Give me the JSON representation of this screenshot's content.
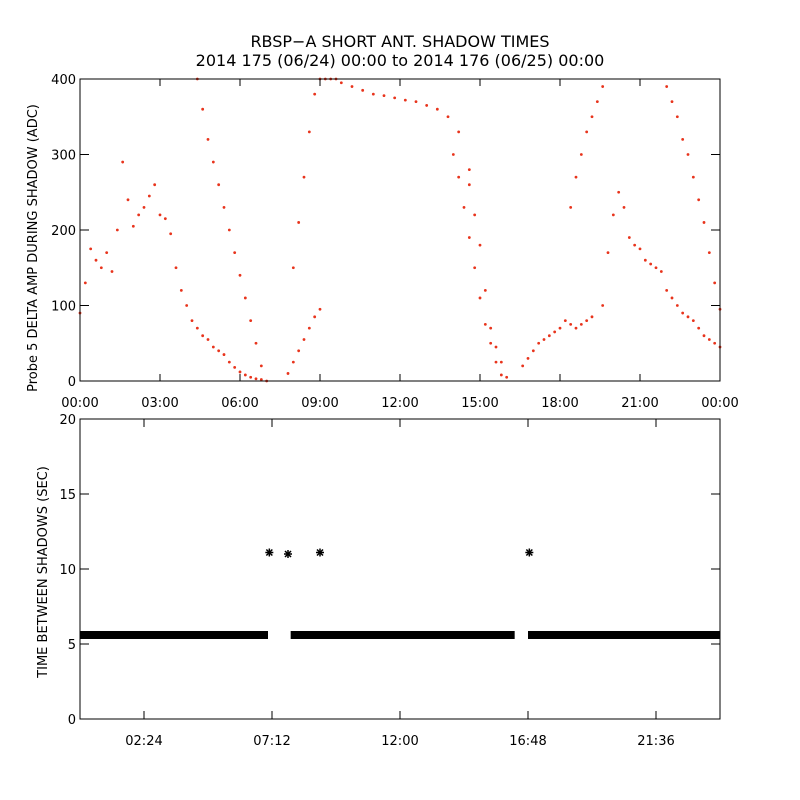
{
  "title_line1": "RBSP−A SHORT ANT. SHADOW TIMES",
  "title_line2": "2014 175 (06/24) 00:00 to 2014 176 (06/25) 00:00",
  "colors": {
    "top_points": "#e8341c",
    "bottom_points": "#000000",
    "axes": "#000000"
  },
  "chart_data": [
    {
      "type": "scatter",
      "title": "RBSP−A SHORT ANT. SHADOW TIMES",
      "ylabel": "Probe 5 DELTA AMP DURING SHADOW (ADC)",
      "xlabel": "",
      "xlim": [
        0,
        24
      ],
      "ylim": [
        0,
        400
      ],
      "x_unit": "hours",
      "x_tick_labels": [
        "00:00",
        "03:00",
        "06:00",
        "09:00",
        "12:00",
        "15:00",
        "18:00",
        "21:00",
        "00:00"
      ],
      "x_tick_values": [
        0,
        3,
        6,
        9,
        12,
        15,
        18,
        21,
        24
      ],
      "y_ticks": [
        0,
        100,
        200,
        300,
        400
      ],
      "color": "#e8341c",
      "series": [
        {
          "name": "",
          "x": [
            0.0,
            0.2,
            0.4,
            0.6,
            0.8,
            1.0,
            1.2,
            1.4,
            1.6,
            1.8,
            2.0,
            2.2,
            2.4,
            2.6,
            2.8,
            3.0,
            3.2,
            3.4,
            3.6,
            3.8,
            4.0,
            4.2,
            4.4,
            4.6,
            4.8,
            5.0,
            5.2,
            5.4,
            5.6,
            5.8,
            6.0,
            6.2,
            6.4,
            6.6,
            6.8,
            7.0,
            4.4,
            4.6,
            4.8,
            5.0,
            5.2,
            5.4,
            5.6,
            5.8,
            6.0,
            6.2,
            6.4,
            6.6,
            6.8,
            7.8,
            8.0,
            8.2,
            8.4,
            8.6,
            8.8,
            9.0,
            8.0,
            8.2,
            8.4,
            8.6,
            8.8,
            9.0,
            9.2,
            9.4,
            9.6,
            9.8,
            10.2,
            10.6,
            11.0,
            11.4,
            11.8,
            12.2,
            12.6,
            13.0,
            13.4,
            13.8,
            14.2,
            14.6,
            14.6,
            14.8,
            15.0,
            15.2,
            15.4,
            15.6,
            15.8,
            16.0,
            14.0,
            14.2,
            14.4,
            14.6,
            14.8,
            15.0,
            15.2,
            15.4,
            15.6,
            15.8,
            16.6,
            16.8,
            17.0,
            17.2,
            17.4,
            17.6,
            17.8,
            18.0,
            18.2,
            18.4,
            18.6,
            18.8,
            19.0,
            19.2,
            18.4,
            18.6,
            18.8,
            19.0,
            19.2,
            19.4,
            19.6,
            19.6,
            19.8,
            20.0,
            20.2,
            20.4,
            20.6,
            20.8,
            21.0,
            21.2,
            21.4,
            21.6,
            21.8,
            22.0,
            22.2,
            22.4,
            22.6,
            22.8,
            23.0,
            23.2,
            23.4,
            23.6,
            23.8,
            24.0,
            22.0,
            22.2,
            22.4,
            22.6,
            22.8,
            23.0,
            23.2,
            23.4,
            23.6,
            23.8,
            24.0
          ],
          "y": [
            90,
            130,
            175,
            160,
            150,
            170,
            145,
            200,
            290,
            240,
            205,
            220,
            230,
            245,
            260,
            220,
            215,
            195,
            150,
            120,
            100,
            80,
            70,
            60,
            55,
            45,
            40,
            35,
            25,
            18,
            12,
            8,
            5,
            3,
            2,
            0,
            400,
            360,
            320,
            290,
            260,
            230,
            200,
            170,
            140,
            110,
            80,
            50,
            20,
            10,
            25,
            40,
            55,
            70,
            85,
            95,
            150,
            210,
            270,
            330,
            380,
            400,
            400,
            400,
            400,
            395,
            390,
            385,
            380,
            378,
            375,
            372,
            370,
            365,
            360,
            350,
            330,
            280,
            260,
            220,
            180,
            120,
            70,
            45,
            25,
            5,
            300,
            270,
            230,
            190,
            150,
            110,
            75,
            50,
            25,
            8,
            20,
            30,
            40,
            50,
            55,
            60,
            65,
            70,
            80,
            75,
            70,
            75,
            80,
            85,
            230,
            270,
            300,
            330,
            350,
            370,
            390,
            100,
            170,
            220,
            250,
            230,
            190,
            180,
            175,
            160,
            155,
            150,
            145,
            120,
            110,
            100,
            90,
            85,
            80,
            70,
            60,
            55,
            50,
            45,
            390,
            370,
            350,
            320,
            300,
            270,
            240,
            210,
            170,
            130,
            95
          ]
        }
      ]
    },
    {
      "type": "scatter",
      "ylabel": "TIME BETWEEN SHADOWS (SEC)",
      "xlabel": "",
      "xlim": [
        0,
        24
      ],
      "ylim": [
        0,
        20
      ],
      "x_unit": "hours",
      "x_tick_labels": [
        "02:24",
        "07:12",
        "12:00",
        "16:48",
        "21:36"
      ],
      "x_tick_values": [
        2.4,
        7.2,
        12.0,
        16.8,
        21.6
      ],
      "y_ticks": [
        0,
        5,
        10,
        15,
        20
      ],
      "color": "#000000",
      "baseline": {
        "value": 5.6,
        "segments": [
          [
            0.0,
            7.05
          ],
          [
            7.9,
            16.3
          ],
          [
            16.8,
            24.0
          ]
        ]
      },
      "outliers": {
        "x": [
          7.1,
          7.8,
          9.0,
          16.85
        ],
        "y": [
          11.1,
          11.0,
          11.1,
          11.1
        ]
      }
    }
  ]
}
